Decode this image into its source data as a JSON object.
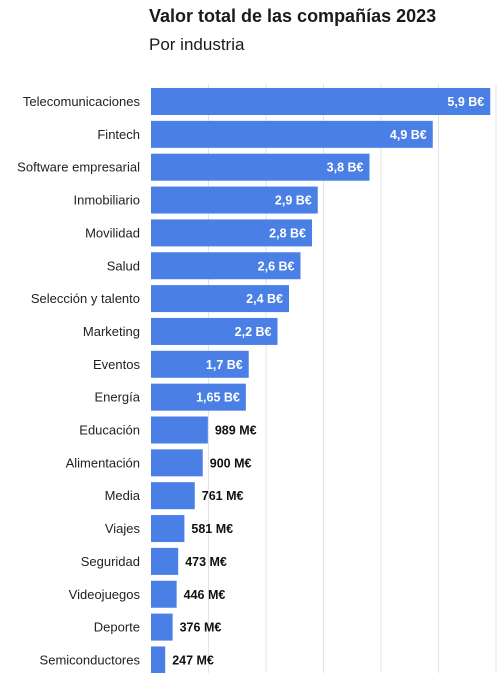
{
  "chart_data": {
    "type": "bar",
    "orientation": "horizontal",
    "title": "Valor total de las compañías 2023",
    "subtitle": "Por industria",
    "categories": [
      "Telecomunicaciones",
      "Fintech",
      "Software empresarial",
      "Inmobiliario",
      "Movilidad",
      "Salud",
      "Selección y talento",
      "Marketing",
      "Eventos",
      "Energía",
      "Educación",
      "Alimentación",
      "Media",
      "Viajes",
      "Seguridad",
      "Videojuegos",
      "Deporte",
      "Semiconductores"
    ],
    "values": [
      5900,
      4900,
      3800,
      2900,
      2800,
      2600,
      2400,
      2200,
      1700,
      1650,
      989,
      900,
      761,
      581,
      473,
      446,
      376,
      247
    ],
    "unit": "M€",
    "value_labels": [
      "5,9 B€",
      "4,9 B€",
      "3,8 B€",
      "2,9 B€",
      "2,8 B€",
      "2,6 B€",
      "2,4 B€",
      "2,2 B€",
      "1,7 B€",
      "1,65 B€",
      "989 M€",
      "900 M€",
      "761 M€",
      "581 M€",
      "473 M€",
      "446 M€",
      "376 M€",
      "247 M€"
    ],
    "xlim": [
      0,
      6000
    ],
    "grid": true,
    "colors": {
      "bar": "#4a80e6",
      "grid": "#e3e3e3",
      "label_inside": "#ffffff",
      "label_outside": "#111111",
      "category": "#222222"
    }
  }
}
